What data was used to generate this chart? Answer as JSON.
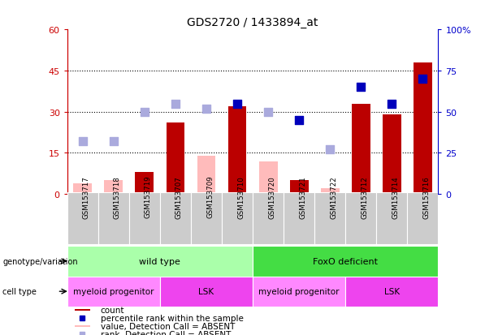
{
  "title": "GDS2720 / 1433894_at",
  "samples": [
    "GSM153717",
    "GSM153718",
    "GSM153719",
    "GSM153707",
    "GSM153709",
    "GSM153710",
    "GSM153720",
    "GSM153721",
    "GSM153722",
    "GSM153712",
    "GSM153714",
    "GSM153716"
  ],
  "count_values": [
    null,
    null,
    8,
    26,
    null,
    32,
    null,
    5,
    null,
    33,
    29,
    48
  ],
  "count_absent": [
    4,
    5,
    null,
    null,
    14,
    null,
    12,
    null,
    2,
    null,
    null,
    null
  ],
  "percentile_values": [
    null,
    null,
    null,
    null,
    null,
    55,
    null,
    45,
    null,
    65,
    55,
    70
  ],
  "percentile_absent": [
    32,
    32,
    50,
    55,
    52,
    null,
    50,
    null,
    27,
    null,
    null,
    null
  ],
  "ylim_left": [
    0,
    60
  ],
  "ylim_right": [
    0,
    100
  ],
  "yticks_left": [
    0,
    15,
    30,
    45,
    60
  ],
  "ytick_labels_left": [
    "0",
    "15",
    "30",
    "45",
    "60"
  ],
  "yticks_right": [
    0,
    25,
    50,
    75,
    100
  ],
  "ytick_labels_right": [
    "0",
    "25",
    "50",
    "75",
    "100%"
  ],
  "bar_color_present": "#bb0000",
  "bar_color_absent": "#ffbbbb",
  "dot_color_present": "#0000bb",
  "dot_color_absent": "#aaaadd",
  "genotype_groups": [
    {
      "label": "wild type",
      "start": 0,
      "end": 5,
      "color": "#aaffaa"
    },
    {
      "label": "FoxO deficient",
      "start": 6,
      "end": 11,
      "color": "#44dd44"
    }
  ],
  "cell_type_groups": [
    {
      "label": "myeloid progenitor",
      "start": 0,
      "end": 2,
      "color": "#ff88ff"
    },
    {
      "label": "LSK",
      "start": 3,
      "end": 5,
      "color": "#ee44ee"
    },
    {
      "label": "myeloid progenitor",
      "start": 6,
      "end": 8,
      "color": "#ff88ff"
    },
    {
      "label": "LSK",
      "start": 9,
      "end": 11,
      "color": "#ee44ee"
    }
  ],
  "legend_items": [
    {
      "label": "count",
      "color": "#bb0000",
      "type": "bar"
    },
    {
      "label": "percentile rank within the sample",
      "color": "#0000bb",
      "type": "dot"
    },
    {
      "label": "value, Detection Call = ABSENT",
      "color": "#ffbbbb",
      "type": "bar"
    },
    {
      "label": "rank, Detection Call = ABSENT",
      "color": "#aaaadd",
      "type": "dot"
    }
  ],
  "genotype_label": "genotype/variation",
  "celltype_label": "cell type",
  "background_color": "#ffffff",
  "sample_bg_color": "#cccccc",
  "plot_bg_color": "#ffffff"
}
